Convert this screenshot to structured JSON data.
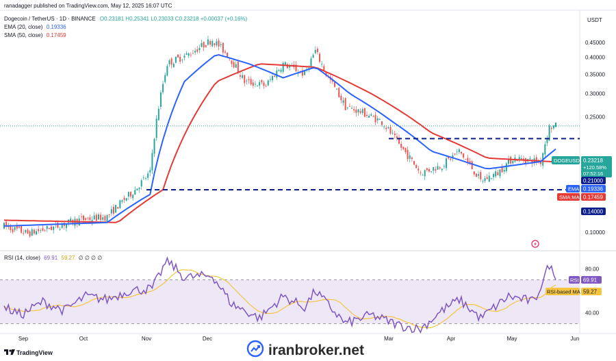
{
  "publisher": "ranadagger published on TradingView.com, May 12, 2025 16:07 UTC",
  "symbol": {
    "title": "Dogecoin / TetherUS · 1D · BINANCE",
    "ohlc": "O0.23181 H0.25341 L0.23033 C0.23218 +0.00037 (+0.16%)"
  },
  "indicators": {
    "ema_label": "EMA (20, close)",
    "ema_value": "0.19336",
    "sma_label": "SMA (50, close)",
    "sma_value": "0.17459"
  },
  "rsi_panel": {
    "label": "RSI (14, close)",
    "rsi_value": "69.91",
    "ma_value": "59.27",
    "zeros": "∅ ∅ ∅ ∅"
  },
  "currency": "USDT",
  "price_axis": [
    "0.45000",
    "0.40000",
    "0.35000",
    "0.30000",
    "0.25000",
    "0.15000",
    "0.10000"
  ],
  "rsi_axis": [
    "80.00",
    "40.00"
  ],
  "x_axis": [
    "Sep",
    "Oct",
    "Nov",
    "Dec",
    "Mar",
    "Apr",
    "May",
    "Jun"
  ],
  "price_tags": {
    "symbol": "DOGEUSDT",
    "price": "0.23218",
    "change": "+120.58%",
    "countdown": "07:52:16",
    "resistance": "0.21000",
    "ema_label": "EMA",
    "ema": "0.19336",
    "sma_label": "SMA:MA",
    "sma": "0.17459",
    "support": "0.14000"
  },
  "rsi_tags": {
    "rsi_label": "RSI",
    "rsi": "69.91",
    "ma_label": "RSI-based MA",
    "ma": "59.27"
  },
  "brand": {
    "tradingview": "TradingView",
    "watermark": "iranbroker.net"
  },
  "colors": {
    "up": "#26a69a",
    "down": "#ef5350",
    "ema": "#2962ff",
    "sma": "#e53935",
    "rsi": "#7e57c2",
    "rsi_ma": "#f5c542",
    "level": "#0b1e8c",
    "band": "#ede7f6"
  },
  "chart_data": {
    "type": "candlestick",
    "title": "Dogecoin / TetherUS · 1D · BINANCE",
    "x_labels": [
      "Sep",
      "Oct",
      "Nov",
      "Dec",
      "Mar",
      "Apr",
      "May",
      "Jun"
    ],
    "y_scale": "log",
    "ylim": [
      0.085,
      0.5
    ],
    "last_price": 0.23218,
    "price_path": [
      [
        "Aug 28",
        0.105
      ],
      [
        "Sep 8",
        0.099
      ],
      [
        "Sep 20",
        0.104
      ],
      [
        "Oct 1",
        0.11
      ],
      [
        "Oct 15",
        0.113
      ],
      [
        "Oct 28",
        0.14
      ],
      [
        "Nov 4",
        0.16
      ],
      [
        "Nov 12",
        0.38
      ],
      [
        "Nov 22",
        0.41
      ],
      [
        "Dec 3",
        0.46
      ],
      [
        "Dec 10",
        0.41
      ],
      [
        "Dec 18",
        0.33
      ],
      [
        "Dec 28",
        0.32
      ],
      [
        "Jan 5",
        0.38
      ],
      [
        "Jan 15",
        0.35
      ],
      [
        "Jan 20",
        0.42
      ],
      [
        "Jan 25",
        0.35
      ],
      [
        "Feb 3",
        0.27
      ],
      [
        "Feb 10",
        0.26
      ],
      [
        "Feb 20",
        0.24
      ],
      [
        "Feb 28",
        0.2
      ],
      [
        "Mar 10",
        0.16
      ],
      [
        "Mar 20",
        0.17
      ],
      [
        "Mar 28",
        0.19
      ],
      [
        "Apr 7",
        0.15
      ],
      [
        "Apr 15",
        0.16
      ],
      [
        "Apr 22",
        0.18
      ],
      [
        "May 5",
        0.175
      ],
      [
        "May 9",
        0.23
      ],
      [
        "May 12",
        0.232
      ]
    ],
    "ema20_path": [
      [
        "Aug 28",
        0.105
      ],
      [
        "Oct 15",
        0.108
      ],
      [
        "Nov 4",
        0.135
      ],
      [
        "Nov 20",
        0.33
      ],
      [
        "Dec 5",
        0.41
      ],
      [
        "Dec 20",
        0.38
      ],
      [
        "Jan 5",
        0.34
      ],
      [
        "Jan 20",
        0.37
      ],
      [
        "Feb 5",
        0.3
      ],
      [
        "Feb 25",
        0.24
      ],
      [
        "Mar 15",
        0.19
      ],
      [
        "Apr 10",
        0.165
      ],
      [
        "May 5",
        0.175
      ],
      [
        "May 12",
        0.19336
      ]
    ],
    "sma50_path": [
      [
        "Aug 28",
        0.11
      ],
      [
        "Oct 20",
        0.108
      ],
      [
        "Nov 10",
        0.14
      ],
      [
        "Dec 5",
        0.33
      ],
      [
        "Dec 25",
        0.38
      ],
      [
        "Jan 20",
        0.37
      ],
      [
        "Feb 15",
        0.3
      ],
      [
        "Mar 15",
        0.22
      ],
      [
        "Apr 10",
        0.18
      ],
      [
        "May 12",
        0.17459
      ]
    ],
    "levels": [
      {
        "price": 0.21,
        "label": "0.21000",
        "style": "dashed",
        "from": "Mar"
      },
      {
        "price": 0.14,
        "label": "0.14000",
        "style": "dashed",
        "from": "Nov"
      }
    ],
    "rsi": {
      "period": 14,
      "value": 69.91,
      "ma_value": 59.27,
      "ylim": [
        20,
        90
      ],
      "overbought": 70,
      "oversold": 30,
      "path": [
        [
          "Aug 28",
          45
        ],
        [
          "Sep 5",
          38
        ],
        [
          "Sep 15",
          50
        ],
        [
          "Sep 25",
          42
        ],
        [
          "Oct 5",
          55
        ],
        [
          "Oct 15",
          52
        ],
        [
          "Oct 25",
          60
        ],
        [
          "Nov 5",
          62
        ],
        [
          "Nov 12",
          88
        ],
        [
          "Nov 20",
          72
        ],
        [
          "Dec 3",
          74
        ],
        [
          "Dec 12",
          48
        ],
        [
          "Dec 25",
          35
        ],
        [
          "Jan 5",
          55
        ],
        [
          "Jan 15",
          45
        ],
        [
          "Jan 20",
          60
        ],
        [
          "Feb 3",
          30
        ],
        [
          "Feb 15",
          38
        ],
        [
          "Mar 1",
          28
        ],
        [
          "Mar 10",
          25
        ],
        [
          "Mar 20",
          42
        ],
        [
          "Mar 28",
          52
        ],
        [
          "Apr 7",
          35
        ],
        [
          "Apr 20",
          55
        ],
        [
          "May 2",
          50
        ],
        [
          "May 9",
          84
        ],
        [
          "May 12",
          69.91
        ]
      ]
    }
  }
}
